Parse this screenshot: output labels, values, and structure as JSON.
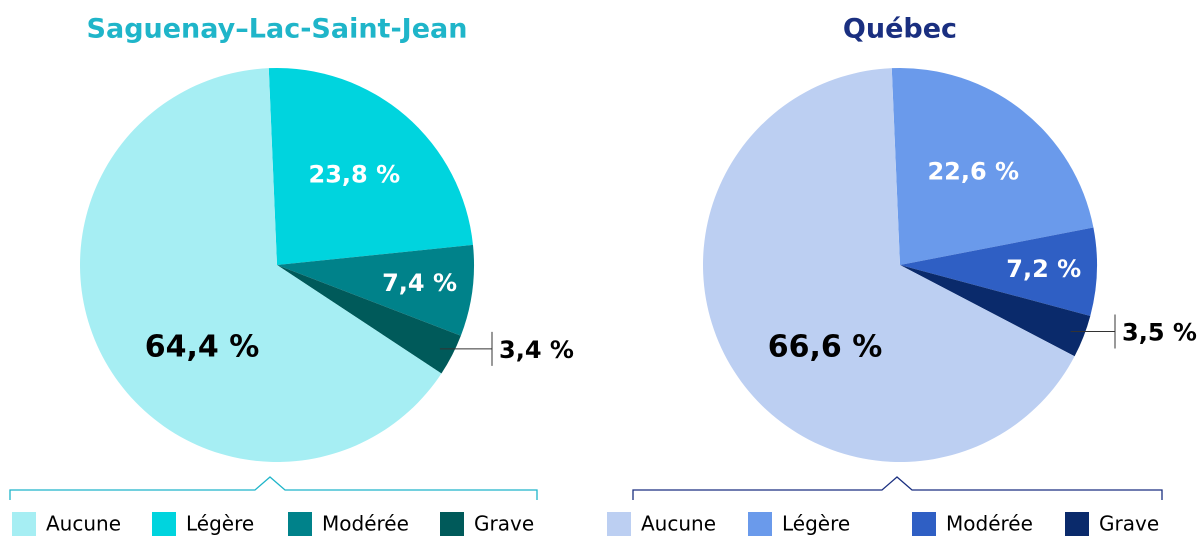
{
  "chart_data": [
    {
      "type": "pie",
      "title": "Saguenay–Lac-Saint-Jean",
      "categories": [
        "Aucune",
        "Légère",
        "Modérée",
        "Grave"
      ],
      "values": [
        64.4,
        23.8,
        7.4,
        3.4
      ],
      "value_labels": [
        "64,4 %",
        "23,8 %",
        "7,4 %",
        "3,4 %"
      ],
      "colors": [
        "#a6eef3",
        "#00d4de",
        "#00828a",
        "#005a5a"
      ],
      "title_color": "#1fb5c9"
    },
    {
      "type": "pie",
      "title": "Québec",
      "categories": [
        "Aucune",
        "Légère",
        "Modérée",
        "Grave"
      ],
      "values": [
        66.6,
        22.6,
        7.2,
        3.5
      ],
      "value_labels": [
        "66,6 %",
        "22,6 %",
        "7,2 %",
        "3,5 %"
      ],
      "colors": [
        "#bccff2",
        "#6a9aeb",
        "#2f5fc4",
        "#0a2a6b"
      ],
      "title_color": "#1a2f80"
    }
  ]
}
